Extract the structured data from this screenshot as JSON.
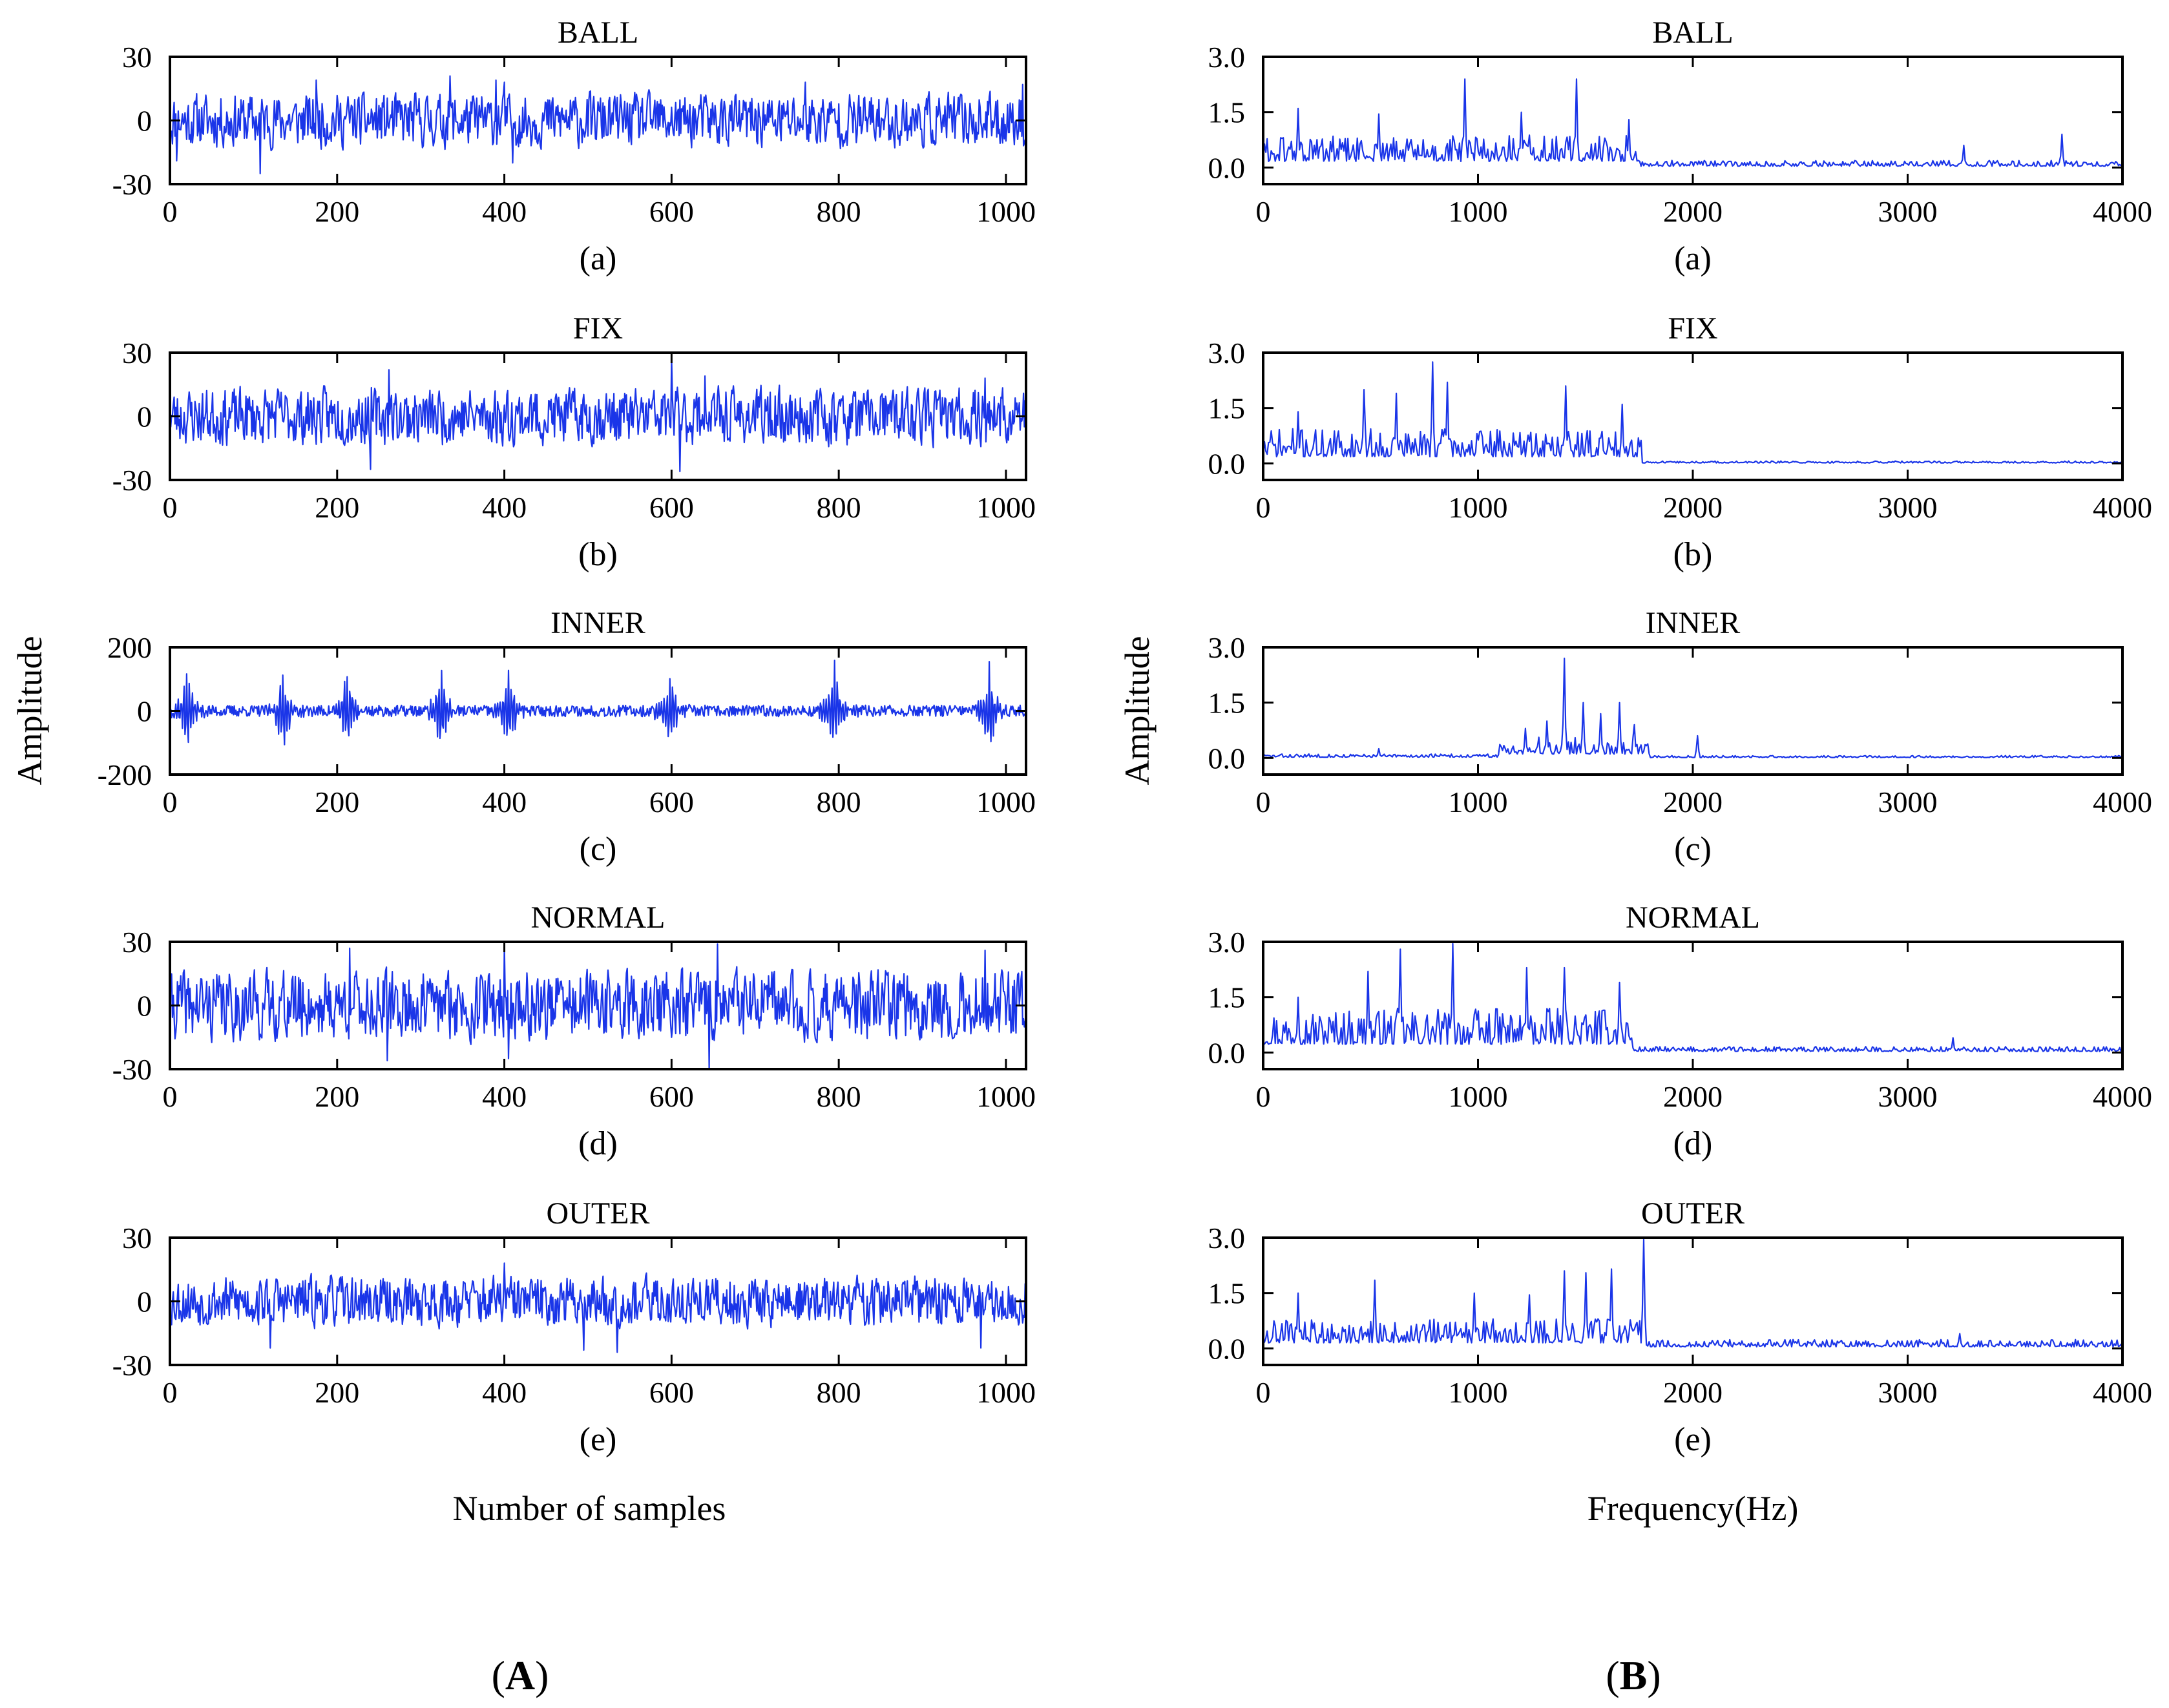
{
  "figure": {
    "left_label": {
      "open": "(",
      "letter": "A",
      "close": ")"
    },
    "right_label": {
      "open": "(",
      "letter": "B",
      "close": ")"
    },
    "left_xlabel": "Number of samples",
    "right_xlabel": "Frequency(Hz)",
    "left_ylabel": "Amplitude",
    "right_ylabel": "Amplitude"
  },
  "chart_data": [
    {
      "id": "time-ball",
      "type": "line",
      "title": "BALL",
      "caption": "(a)",
      "xlim": [
        0,
        1024
      ],
      "ylim": [
        -30,
        30
      ],
      "xticks": [
        0,
        200,
        400,
        600,
        800,
        1000
      ],
      "yticks": [
        30,
        0,
        -30
      ],
      "xticklabels": [
        "0",
        "200",
        "400",
        "600",
        "800",
        "1000"
      ],
      "yticklabels": [
        "30",
        "0",
        "-30"
      ],
      "series": [
        {
          "name": "BALL",
          "color": "#1a35e8",
          "signal": {
            "kind": "noise",
            "n": 1024,
            "amp": 8.5,
            "clip": 26,
            "seed": 11,
            "peaks": [
              [
                8,
                -19
              ],
              [
                108,
                -25
              ],
              [
                175,
                19
              ],
              [
                335,
                21
              ],
              [
                390,
                19
              ],
              [
                400,
                18
              ],
              [
                410,
                -20
              ],
              [
                760,
                18
              ],
              [
                1020,
                17
              ]
            ]
          }
        }
      ]
    },
    {
      "id": "time-fix",
      "type": "line",
      "title": "FIX",
      "caption": "(b)",
      "xlim": [
        0,
        1024
      ],
      "ylim": [
        -30,
        30
      ],
      "xticks": [
        0,
        200,
        400,
        600,
        800,
        1000
      ],
      "yticks": [
        30,
        0,
        -30
      ],
      "xticklabels": [
        "0",
        "200",
        "400",
        "600",
        "800",
        "1000"
      ],
      "yticklabels": [
        "30",
        "0",
        "-30"
      ],
      "series": [
        {
          "name": "FIX",
          "color": "#1a35e8",
          "signal": {
            "kind": "noise",
            "n": 1024,
            "amp": 9,
            "clip": 27,
            "seed": 23,
            "peaks": [
              [
                240,
                -25
              ],
              [
                262,
                22
              ],
              [
                600,
                28
              ],
              [
                610,
                -26
              ],
              [
                640,
                19
              ],
              [
                975,
                18
              ]
            ]
          }
        }
      ]
    },
    {
      "id": "time-inner",
      "type": "line",
      "title": "INNER",
      "caption": "(c)",
      "xlim": [
        0,
        1024
      ],
      "ylim": [
        -200,
        200
      ],
      "xticks": [
        0,
        200,
        400,
        600,
        800,
        1000
      ],
      "yticks": [
        200,
        0,
        -200
      ],
      "xticklabels": [
        "0",
        "200",
        "400",
        "600",
        "800",
        "1000"
      ],
      "yticklabels": [
        "200",
        "0",
        "-200"
      ],
      "series": [
        {
          "name": "INNER",
          "color": "#1a35e8",
          "signal": {
            "kind": "impulse",
            "n": 1024,
            "amp": 18,
            "clip": 190,
            "seed": 37,
            "impulses": [
              20,
              135,
              212,
              325,
              405,
              598,
              795,
              980
            ],
            "impulse_amp": 150
          }
        }
      ]
    },
    {
      "id": "time-normal",
      "type": "line",
      "title": "NORMAL",
      "caption": "(d)",
      "xlim": [
        0,
        1024
      ],
      "ylim": [
        -30,
        30
      ],
      "xticks": [
        0,
        200,
        400,
        600,
        800,
        1000
      ],
      "yticks": [
        30,
        0,
        -30
      ],
      "xticklabels": [
        "0",
        "200",
        "400",
        "600",
        "800",
        "1000"
      ],
      "yticklabels": [
        "30",
        "0",
        "-30"
      ],
      "series": [
        {
          "name": "NORMAL",
          "color": "#1a35e8",
          "signal": {
            "kind": "noise",
            "n": 1024,
            "amp": 11,
            "clip": 28,
            "seed": 41,
            "peaks": [
              [
                215,
                27
              ],
              [
                260,
                -26
              ],
              [
                400,
                29
              ],
              [
                405,
                -25
              ],
              [
                645,
                -30
              ],
              [
                655,
                29
              ],
              [
                975,
                26
              ]
            ]
          }
        }
      ]
    },
    {
      "id": "time-outer",
      "type": "line",
      "title": "OUTER",
      "caption": "(e)",
      "xlim": [
        0,
        1024
      ],
      "ylim": [
        -30,
        30
      ],
      "xticks": [
        0,
        200,
        400,
        600,
        800,
        1000
      ],
      "yticks": [
        30,
        0,
        -30
      ],
      "xticklabels": [
        "0",
        "200",
        "400",
        "600",
        "800",
        "1000"
      ],
      "yticklabels": [
        "30",
        "0",
        "-30"
      ],
      "series": [
        {
          "name": "OUTER",
          "color": "#1a35e8",
          "signal": {
            "kind": "noise",
            "n": 1024,
            "amp": 8,
            "clip": 24,
            "seed": 53,
            "peaks": [
              [
                120,
                -22
              ],
              [
                400,
                18
              ],
              [
                495,
                -23
              ],
              [
                535,
                -24
              ],
              [
                970,
                -22
              ]
            ]
          }
        }
      ]
    },
    {
      "id": "freq-ball",
      "type": "line",
      "title": "BALL",
      "caption": "(a)",
      "xlim": [
        0,
        4000
      ],
      "ylim": [
        -0.45,
        3.0
      ],
      "xticks": [
        0,
        1000,
        2000,
        3000,
        4000
      ],
      "yticks": [
        3.0,
        1.5,
        0.0
      ],
      "xticklabels": [
        "0",
        "1000",
        "2000",
        "3000",
        "4000"
      ],
      "yticklabels": [
        "3.0",
        "1.5",
        "0.0"
      ],
      "series": [
        {
          "name": "BALL",
          "color": "#1a35e8",
          "signal": {
            "kind": "spectrum",
            "n": 640,
            "seed": 61,
            "bands": [
              [
                0,
                1750,
                0.55
              ],
              [
                1750,
                4000,
                0.12
              ]
            ],
            "peaks": [
              [
                160,
                1.6
              ],
              [
                540,
                1.45
              ],
              [
                940,
                2.4
              ],
              [
                1200,
                1.5
              ],
              [
                1460,
                2.4
              ],
              [
                1700,
                1.3
              ],
              [
                3260,
                0.6
              ],
              [
                3720,
                0.9
              ]
            ]
          }
        }
      ]
    },
    {
      "id": "freq-fix",
      "type": "line",
      "title": "FIX",
      "caption": "(b)",
      "xlim": [
        0,
        4000
      ],
      "ylim": [
        -0.45,
        3.0
      ],
      "xticks": [
        0,
        1000,
        2000,
        3000,
        4000
      ],
      "yticks": [
        3.0,
        1.5,
        0.0
      ],
      "xticklabels": [
        "0",
        "1000",
        "2000",
        "3000",
        "4000"
      ],
      "yticklabels": [
        "3.0",
        "1.5",
        "0.0"
      ],
      "series": [
        {
          "name": "FIX",
          "color": "#1a35e8",
          "signal": {
            "kind": "spectrum",
            "n": 640,
            "seed": 71,
            "bands": [
              [
                0,
                1760,
                0.6
              ],
              [
                1760,
                4000,
                0.04
              ]
            ],
            "peaks": [
              [
                160,
                1.4
              ],
              [
                470,
                2.0
              ],
              [
                620,
                1.9
              ],
              [
                790,
                2.75
              ],
              [
                860,
                2.2
              ],
              [
                1410,
                2.1
              ],
              [
                1670,
                1.6
              ]
            ]
          }
        }
      ]
    },
    {
      "id": "freq-inner",
      "type": "line",
      "title": "INNER",
      "caption": "(c)",
      "xlim": [
        0,
        4000
      ],
      "ylim": [
        -0.45,
        3.0
      ],
      "xticks": [
        0,
        1000,
        2000,
        3000,
        4000
      ],
      "yticks": [
        3.0,
        1.5,
        0.0
      ],
      "xticklabels": [
        "0",
        "1000",
        "2000",
        "3000",
        "4000"
      ],
      "yticklabels": [
        "3.0",
        "1.5",
        "0.0"
      ],
      "series": [
        {
          "name": "INNER",
          "color": "#1a35e8",
          "signal": {
            "kind": "spectrum",
            "n": 640,
            "seed": 83,
            "bands": [
              [
                0,
                1100,
                0.07
              ],
              [
                1100,
                1800,
                0.35
              ],
              [
                1800,
                4000,
                0.04
              ]
            ],
            "peaks": [
              [
                540,
                0.25
              ],
              [
                1220,
                0.8
              ],
              [
                1320,
                1.0
              ],
              [
                1400,
                2.7
              ],
              [
                1490,
                1.5
              ],
              [
                1570,
                1.2
              ],
              [
                1660,
                1.5
              ],
              [
                1730,
                0.9
              ],
              [
                2020,
                0.6
              ]
            ]
          }
        }
      ]
    },
    {
      "id": "freq-normal",
      "type": "line",
      "title": "NORMAL",
      "caption": "(d)",
      "xlim": [
        0,
        4000
      ],
      "ylim": [
        -0.45,
        3.0
      ],
      "xticks": [
        0,
        1000,
        2000,
        3000,
        4000
      ],
      "yticks": [
        3.0,
        1.5,
        0.0
      ],
      "xticklabels": [
        "0",
        "1000",
        "2000",
        "3000",
        "4000"
      ],
      "yticklabels": [
        "3.0",
        "1.5",
        "0.0"
      ],
      "series": [
        {
          "name": "NORMAL",
          "color": "#1a35e8",
          "signal": {
            "kind": "spectrum",
            "n": 640,
            "seed": 97,
            "bands": [
              [
                0,
                1720,
                0.75
              ],
              [
                1720,
                4000,
                0.1
              ]
            ],
            "peaks": [
              [
                160,
                1.5
              ],
              [
                490,
                2.2
              ],
              [
                640,
                2.8
              ],
              [
                880,
                2.95
              ],
              [
                1230,
                2.3
              ],
              [
                1400,
                2.3
              ],
              [
                1660,
                1.9
              ],
              [
                3210,
                0.4
              ]
            ]
          }
        }
      ]
    },
    {
      "id": "freq-outer",
      "type": "line",
      "title": "OUTER",
      "caption": "(e)",
      "xlim": [
        0,
        4000
      ],
      "ylim": [
        -0.45,
        3.0
      ],
      "xticks": [
        0,
        1000,
        2000,
        3000,
        4000
      ],
      "yticks": [
        3.0,
        1.5,
        0.0
      ],
      "xticklabels": [
        "0",
        "1000",
        "2000",
        "3000",
        "4000"
      ],
      "yticklabels": [
        "3.0",
        "1.5",
        "0.0"
      ],
      "series": [
        {
          "name": "OUTER",
          "color": "#1a35e8",
          "signal": {
            "kind": "spectrum",
            "n": 640,
            "seed": 109,
            "bands": [
              [
                0,
                1780,
                0.5
              ],
              [
                1780,
                4000,
                0.15
              ]
            ],
            "peaks": [
              [
                160,
                1.5
              ],
              [
                520,
                1.85
              ],
              [
                980,
                1.5
              ],
              [
                1240,
                1.45
              ],
              [
                1400,
                2.1
              ],
              [
                1500,
                2.05
              ],
              [
                1620,
                2.15
              ],
              [
                1770,
                2.95
              ],
              [
                3240,
                0.4
              ]
            ]
          }
        }
      ]
    }
  ]
}
